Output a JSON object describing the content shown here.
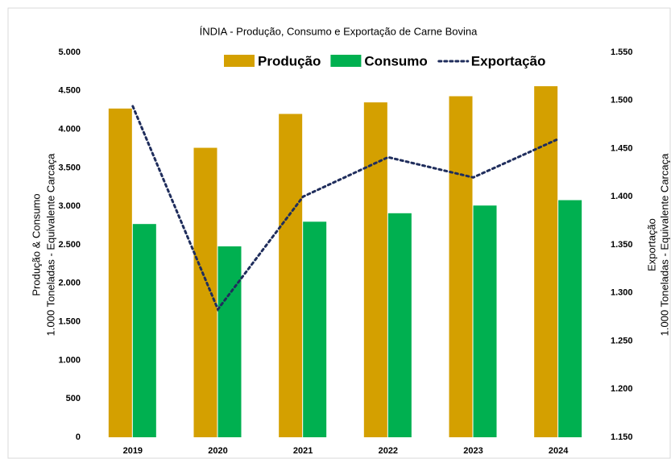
{
  "chart_data": {
    "type": "bar_line",
    "title": "ÍNDIA - Produção, Consumo e Exportação de Carne Bovina",
    "y_label_lines": [
      "Produção & Consumo",
      "1.000 Toneladas - Equivalente Carcaça"
    ],
    "y2_label_lines": [
      "Exportação",
      "1.000 Toneladas - Equivalente Carcaça"
    ],
    "categories": [
      "2019",
      "2020",
      "2021",
      "2022",
      "2023",
      "2024"
    ],
    "series": [
      {
        "name": "Produção",
        "color": "#d4a000",
        "kind": "bar",
        "values": [
          4270,
          3760,
          4200,
          4350,
          4430,
          4560
        ]
      },
      {
        "name": "Consumo",
        "color": "#00b050",
        "kind": "bar",
        "values": [
          2770,
          2480,
          2800,
          2910,
          3010,
          3080
        ]
      },
      {
        "name": "Exportação",
        "color": "#1f2d5c",
        "kind": "line",
        "axis": "y2",
        "values": [
          1494,
          1283,
          1400,
          1441,
          1420,
          1460
        ]
      }
    ],
    "ylim": [
      0,
      5000
    ],
    "yticks": [
      0,
      500,
      {
        "value": 1000,
        "label": "1.000"
      },
      {
        "value": 1500,
        "label": "1.500"
      },
      {
        "value": 2000,
        "label": "2.000"
      },
      {
        "value": 2500,
        "label": "2.500"
      },
      {
        "value": 3000,
        "label": "3.000"
      },
      {
        "value": 3500,
        "label": "3.500"
      },
      {
        "value": 4000,
        "label": "4.000"
      },
      {
        "value": 4500,
        "label": "4.500"
      },
      {
        "value": 5000,
        "label": "5.000"
      }
    ],
    "y2lim": [
      1150,
      1550
    ],
    "y2ticks": [
      {
        "value": 1150,
        "label": "1.150"
      },
      {
        "value": 1200,
        "label": "1.200"
      },
      {
        "value": 1250,
        "label": "1.250"
      },
      {
        "value": 1300,
        "label": "1.300"
      },
      {
        "value": 1350,
        "label": "1.350"
      },
      {
        "value": 1400,
        "label": "1.400"
      },
      {
        "value": 1450,
        "label": "1.450"
      },
      {
        "value": 1500,
        "label": "1.500"
      },
      {
        "value": 1550,
        "label": "1.550"
      }
    ],
    "legend": "top",
    "grid": false
  }
}
